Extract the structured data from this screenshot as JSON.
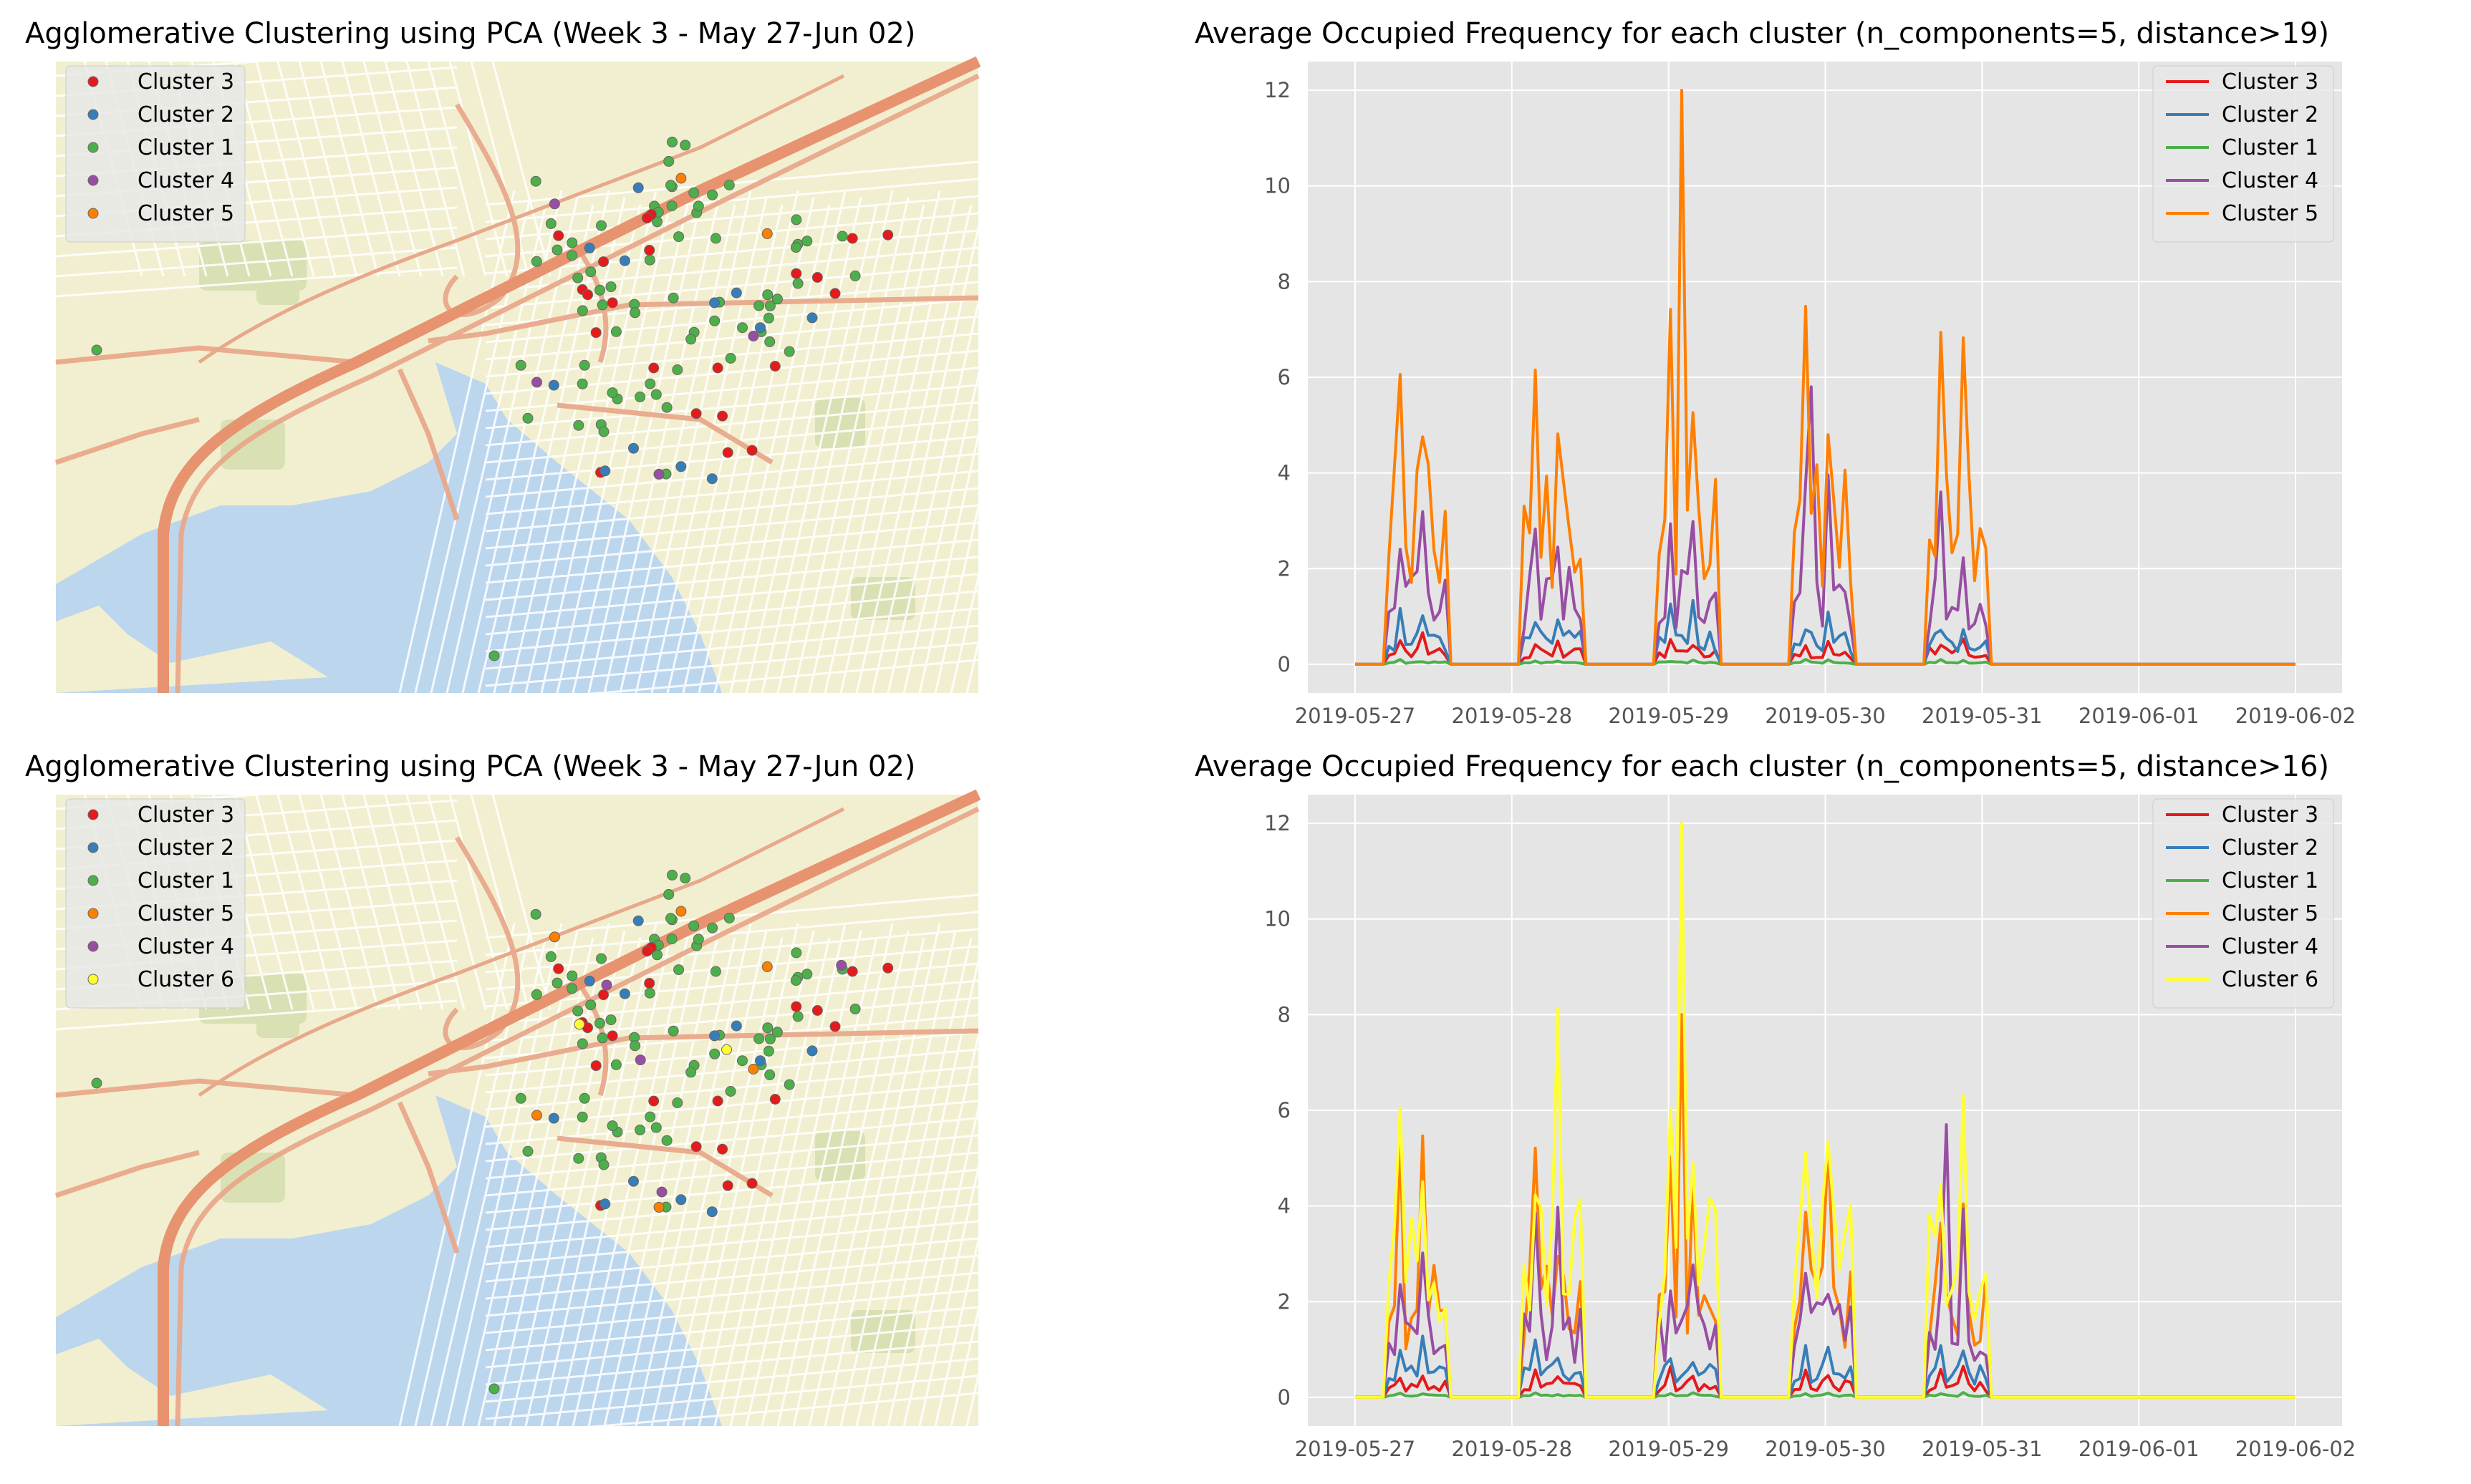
{
  "colors": {
    "Cluster 1": "#4daf4a",
    "Cluster 2": "#377eb8",
    "Cluster 3": "#e41a1c",
    "Cluster 4": "#984ea3",
    "Cluster 5": "#ff7f00",
    "Cluster 6": "#ffff33"
  },
  "chart_data": [
    {
      "id": "map1",
      "type": "scatter",
      "title": "Agglomerative Clustering using PCA (Week 3 - May 27-Jun 02)",
      "legend": [
        "Cluster 3",
        "Cluster 2",
        "Cluster 1",
        "Cluster 4",
        "Cluster 5"
      ],
      "legend_position": "top-left",
      "background": "street map",
      "axes_visible": false
    },
    {
      "id": "line1",
      "type": "line",
      "title": "Average Occupied Frequency for each cluster (n_components=5, distance>19)",
      "x_ticks": [
        "2019-05-27",
        "2019-05-28",
        "2019-05-29",
        "2019-05-30",
        "2019-05-31",
        "2019-06-01",
        "2019-06-02"
      ],
      "y_ticks": [
        0,
        2,
        4,
        6,
        8,
        10,
        12
      ],
      "ylim": [
        -0.6,
        12.6
      ],
      "legend_position": "top-right",
      "series": [
        {
          "name": "Cluster 3",
          "peak": 1.0
        },
        {
          "name": "Cluster 2",
          "peak": 2.0
        },
        {
          "name": "Cluster 1",
          "peak": 0.15
        },
        {
          "name": "Cluster 4",
          "peak": 5.8
        },
        {
          "name": "Cluster 5",
          "peak": 12.0
        }
      ]
    },
    {
      "id": "map2",
      "type": "scatter",
      "title": "Agglomerative Clustering using PCA (Week 3 - May 27-Jun 02)",
      "legend": [
        "Cluster 3",
        "Cluster 2",
        "Cluster 1",
        "Cluster 5",
        "Cluster 4",
        "Cluster 6"
      ],
      "legend_position": "top-left",
      "background": "street map",
      "axes_visible": false
    },
    {
      "id": "line2",
      "type": "line",
      "title": "Average Occupied Frequency for each cluster (n_components=5, distance>16)",
      "x_ticks": [
        "2019-05-27",
        "2019-05-28",
        "2019-05-29",
        "2019-05-30",
        "2019-05-31",
        "2019-06-01",
        "2019-06-02"
      ],
      "y_ticks": [
        0,
        2,
        4,
        6,
        8,
        10,
        12
      ],
      "ylim": [
        -0.6,
        12.6
      ],
      "legend_position": "top-right",
      "series": [
        {
          "name": "Cluster 3",
          "peak": 1.0
        },
        {
          "name": "Cluster 2",
          "peak": 2.0
        },
        {
          "name": "Cluster 1",
          "peak": 0.15
        },
        {
          "name": "Cluster 5",
          "peak": 8.0
        },
        {
          "name": "Cluster 4",
          "peak": 5.7
        },
        {
          "name": "Cluster 6",
          "peak": 12.0
        }
      ]
    }
  ]
}
